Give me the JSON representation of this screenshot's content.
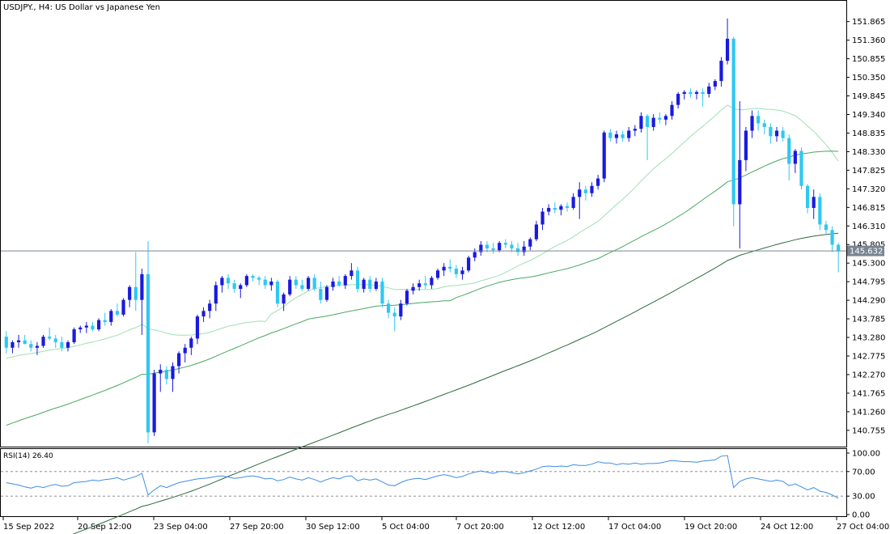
{
  "window": {
    "symbol_title": "USDJPY., H4:  US Dollar vs Japanese Yen",
    "rsi_label": "RSI(14) 26.40",
    "current_price_label": "145.632"
  },
  "price_axis": {
    "labels": [
      "151.865",
      "151.360",
      "150.855",
      "150.350",
      "149.845",
      "149.340",
      "148.835",
      "148.330",
      "147.825",
      "147.320",
      "146.815",
      "146.310",
      "145.805",
      "145.300",
      "144.795",
      "144.290",
      "143.785",
      "143.280",
      "142.775",
      "142.270",
      "141.765",
      "141.260",
      "140.755"
    ]
  },
  "rsi_axis": {
    "labels": [
      "100.00",
      "70.00",
      "30.00",
      "0.00"
    ]
  },
  "time_axis": {
    "labels": [
      "15 Sep 2022",
      "20 Sep 12:00",
      "23 Sep 04:00",
      "27 Sep 20:00",
      "30 Sep 12:00",
      "5 Oct 04:00",
      "7 Oct 20:00",
      "12 Oct 12:00",
      "17 Oct 04:00",
      "19 Oct 20:00",
      "24 Oct 12:00",
      "27 Oct 04:00"
    ]
  },
  "colors": {
    "bull": "#1a1adf",
    "bear": "#2ec8f2",
    "ma_fast": "#9ee0b4",
    "ma_mid": "#4aa860",
    "ma_slow": "#2e6b3c",
    "rsi_line": "#3d8ee8",
    "grid": "#808080",
    "price_tag_bg": "#7a8593"
  },
  "chart_data": {
    "type": "candlestick",
    "symbol": "USDJPY.",
    "timeframe": "H4",
    "title": "US Dollar vs Japanese Yen",
    "ylim": [
      140.4,
      152.1
    ],
    "current_price": 145.632,
    "candles": [
      [
        143.3,
        143.45,
        142.85,
        143.0
      ],
      [
        143.0,
        143.2,
        142.85,
        143.15
      ],
      [
        143.15,
        143.35,
        143.0,
        143.2
      ],
      [
        143.2,
        143.35,
        143.1,
        143.1
      ],
      [
        143.1,
        143.2,
        142.9,
        143.0
      ],
      [
        143.0,
        143.15,
        142.8,
        143.05
      ],
      [
        143.05,
        143.35,
        143.0,
        143.3
      ],
      [
        143.3,
        143.55,
        143.2,
        143.25
      ],
      [
        143.25,
        143.35,
        143.0,
        143.15
      ],
      [
        143.15,
        143.3,
        142.9,
        143.0
      ],
      [
        143.0,
        143.2,
        142.9,
        143.15
      ],
      [
        143.15,
        143.55,
        143.1,
        143.5
      ],
      [
        143.5,
        143.6,
        143.4,
        143.55
      ],
      [
        143.55,
        143.7,
        143.4,
        143.6
      ],
      [
        143.6,
        143.7,
        143.45,
        143.5
      ],
      [
        143.5,
        143.8,
        143.45,
        143.75
      ],
      [
        143.75,
        143.95,
        143.6,
        143.7
      ],
      [
        143.7,
        144.05,
        143.6,
        144.0
      ],
      [
        144.0,
        144.2,
        143.85,
        143.9
      ],
      [
        143.9,
        144.35,
        143.85,
        144.3
      ],
      [
        144.3,
        144.7,
        144.1,
        144.65
      ],
      [
        144.65,
        145.6,
        144.0,
        144.3
      ],
      [
        144.3,
        145.15,
        143.35,
        145.0
      ],
      [
        145.0,
        145.9,
        140.4,
        140.7
      ],
      [
        140.7,
        142.4,
        140.6,
        142.3
      ],
      [
        142.3,
        142.55,
        141.8,
        142.4
      ],
      [
        142.4,
        142.5,
        142.0,
        142.15
      ],
      [
        142.15,
        142.6,
        141.8,
        142.5
      ],
      [
        142.5,
        142.9,
        142.3,
        142.85
      ],
      [
        142.85,
        143.1,
        142.6,
        143.0
      ],
      [
        143.0,
        143.3,
        142.8,
        143.25
      ],
      [
        143.25,
        143.9,
        143.1,
        143.85
      ],
      [
        143.85,
        144.1,
        143.7,
        144.0
      ],
      [
        144.0,
        144.3,
        143.8,
        144.2
      ],
      [
        144.2,
        144.8,
        144.0,
        144.7
      ],
      [
        144.7,
        144.95,
        144.5,
        144.9
      ],
      [
        144.9,
        145.0,
        144.6,
        144.75
      ],
      [
        144.75,
        144.85,
        144.5,
        144.6
      ],
      [
        144.6,
        144.75,
        144.35,
        144.7
      ],
      [
        144.7,
        145.0,
        144.65,
        144.95
      ],
      [
        144.95,
        145.0,
        144.8,
        144.9
      ],
      [
        144.9,
        144.95,
        144.7,
        144.85
      ],
      [
        144.85,
        144.95,
        144.6,
        144.7
      ],
      [
        144.7,
        144.9,
        144.55,
        144.8
      ],
      [
        144.8,
        144.85,
        144.1,
        144.2
      ],
      [
        144.2,
        144.5,
        144.0,
        144.45
      ],
      [
        144.45,
        144.95,
        144.4,
        144.85
      ],
      [
        144.85,
        144.95,
        144.6,
        144.7
      ],
      [
        144.7,
        144.85,
        144.55,
        144.6
      ],
      [
        144.6,
        144.95,
        144.55,
        144.9
      ],
      [
        144.9,
        145.0,
        144.55,
        144.6
      ],
      [
        144.6,
        144.8,
        144.2,
        144.3
      ],
      [
        144.3,
        144.7,
        144.25,
        144.65
      ],
      [
        144.65,
        144.9,
        144.55,
        144.8
      ],
      [
        144.8,
        144.95,
        144.65,
        144.7
      ],
      [
        144.7,
        145.0,
        144.6,
        144.95
      ],
      [
        144.95,
        145.3,
        144.85,
        145.1
      ],
      [
        145.1,
        145.2,
        144.5,
        144.6
      ],
      [
        144.6,
        144.9,
        144.5,
        144.85
      ],
      [
        144.85,
        144.95,
        144.5,
        144.6
      ],
      [
        144.6,
        144.9,
        144.55,
        144.8
      ],
      [
        144.8,
        144.9,
        144.1,
        144.2
      ],
      [
        144.2,
        144.3,
        143.8,
        143.95
      ],
      [
        143.95,
        144.1,
        143.45,
        143.85
      ],
      [
        143.85,
        144.3,
        143.75,
        144.2
      ],
      [
        144.2,
        144.6,
        144.15,
        144.55
      ],
      [
        144.55,
        144.75,
        144.45,
        144.65
      ],
      [
        144.65,
        144.85,
        144.55,
        144.75
      ],
      [
        144.75,
        144.95,
        144.6,
        144.7
      ],
      [
        144.7,
        144.95,
        144.6,
        144.9
      ],
      [
        144.9,
        145.15,
        144.85,
        145.1
      ],
      [
        145.1,
        145.3,
        144.95,
        145.2
      ],
      [
        145.2,
        145.4,
        145.05,
        145.15
      ],
      [
        145.15,
        145.25,
        144.9,
        145.0
      ],
      [
        145.0,
        145.2,
        144.85,
        145.1
      ],
      [
        145.1,
        145.5,
        145.05,
        145.45
      ],
      [
        145.45,
        145.7,
        145.35,
        145.6
      ],
      [
        145.6,
        145.9,
        145.5,
        145.8
      ],
      [
        145.8,
        145.9,
        145.6,
        145.7
      ],
      [
        145.7,
        145.85,
        145.55,
        145.65
      ],
      [
        145.65,
        145.9,
        145.6,
        145.85
      ],
      [
        145.85,
        145.95,
        145.7,
        145.8
      ],
      [
        145.8,
        145.9,
        145.6,
        145.7
      ],
      [
        145.7,
        145.85,
        145.5,
        145.6
      ],
      [
        145.6,
        145.9,
        145.5,
        145.75
      ],
      [
        145.75,
        146.0,
        145.65,
        145.95
      ],
      [
        145.95,
        146.45,
        145.9,
        146.35
      ],
      [
        146.35,
        146.8,
        146.2,
        146.7
      ],
      [
        146.7,
        146.9,
        146.6,
        146.8
      ],
      [
        146.8,
        146.95,
        146.65,
        146.75
      ],
      [
        146.75,
        146.9,
        146.6,
        146.85
      ],
      [
        146.85,
        146.95,
        146.7,
        146.8
      ],
      [
        146.8,
        147.2,
        146.75,
        147.1
      ],
      [
        147.1,
        147.5,
        146.5,
        147.3
      ],
      [
        147.3,
        147.4,
        147.0,
        147.2
      ],
      [
        147.2,
        147.5,
        147.1,
        147.4
      ],
      [
        147.4,
        147.7,
        147.3,
        147.6
      ],
      [
        147.6,
        148.9,
        147.5,
        148.85
      ],
      [
        148.85,
        148.95,
        148.6,
        148.7
      ],
      [
        148.7,
        148.9,
        148.55,
        148.8
      ],
      [
        148.8,
        148.9,
        148.6,
        148.7
      ],
      [
        148.7,
        149.0,
        148.6,
        148.9
      ],
      [
        148.9,
        149.05,
        148.75,
        148.95
      ],
      [
        148.95,
        149.4,
        148.85,
        149.3
      ],
      [
        149.3,
        149.35,
        148.1,
        149.0
      ],
      [
        149.0,
        149.35,
        148.9,
        149.25
      ],
      [
        149.25,
        149.4,
        149.1,
        149.2
      ],
      [
        149.2,
        149.35,
        149.05,
        149.3
      ],
      [
        149.3,
        149.7,
        149.2,
        149.6
      ],
      [
        149.6,
        149.95,
        149.5,
        149.9
      ],
      [
        149.9,
        150.0,
        149.75,
        149.95
      ],
      [
        149.95,
        150.05,
        149.8,
        149.9
      ],
      [
        149.9,
        150.0,
        149.75,
        149.95
      ],
      [
        149.95,
        150.05,
        149.55,
        149.9
      ],
      [
        149.9,
        150.2,
        149.8,
        150.1
      ],
      [
        150.1,
        150.3,
        150.0,
        150.25
      ],
      [
        150.25,
        150.9,
        150.1,
        150.8
      ],
      [
        150.8,
        151.95,
        150.7,
        151.4
      ],
      [
        151.4,
        151.45,
        146.3,
        146.9
      ],
      [
        146.9,
        149.7,
        145.7,
        148.1
      ],
      [
        148.1,
        149.0,
        147.8,
        148.9
      ],
      [
        148.9,
        149.45,
        148.7,
        149.3
      ],
      [
        149.3,
        149.45,
        148.9,
        149.1
      ],
      [
        149.1,
        149.2,
        148.8,
        149.0
      ],
      [
        149.0,
        149.1,
        148.55,
        148.75
      ],
      [
        148.75,
        149.0,
        148.6,
        148.9
      ],
      [
        148.9,
        149.0,
        148.6,
        148.7
      ],
      [
        148.7,
        148.8,
        147.55,
        148.0
      ],
      [
        148.0,
        148.4,
        147.75,
        148.35
      ],
      [
        148.35,
        148.45,
        147.3,
        147.4
      ],
      [
        147.4,
        147.45,
        146.65,
        146.8
      ],
      [
        146.8,
        147.3,
        146.5,
        147.1
      ],
      [
        147.1,
        147.2,
        146.2,
        146.35
      ],
      [
        146.35,
        146.45,
        146.1,
        146.2
      ],
      [
        146.2,
        146.3,
        145.6,
        145.8
      ],
      [
        145.8,
        145.85,
        145.05,
        145.632
      ]
    ],
    "rsi": {
      "name": "RSI(14)",
      "last_value": 26.4,
      "levels": [
        70,
        30
      ],
      "ylim": [
        0,
        100
      ],
      "values": [
        52,
        50,
        48,
        45,
        43,
        46,
        44,
        47,
        49,
        46,
        47,
        52,
        53,
        54,
        56,
        55,
        57,
        58,
        60,
        56,
        59,
        62,
        67,
        32,
        40,
        47,
        44,
        48,
        52,
        54,
        56,
        58,
        59,
        60,
        62,
        63,
        61,
        59,
        60,
        62,
        63,
        61,
        58,
        59,
        55,
        57,
        61,
        58,
        56,
        60,
        57,
        53,
        57,
        60,
        58,
        62,
        63,
        55,
        58,
        56,
        58,
        53,
        48,
        47,
        52,
        56,
        58,
        59,
        57,
        60,
        63,
        65,
        63,
        60,
        62,
        66,
        69,
        71,
        69,
        67,
        70,
        70,
        68,
        66,
        68,
        71,
        74,
        78,
        79,
        78,
        79,
        78,
        81,
        80,
        80,
        82,
        86,
        84,
        84,
        81,
        83,
        82,
        84,
        82,
        83,
        83,
        84,
        86,
        88,
        87,
        86,
        86,
        85,
        87,
        88,
        89,
        95,
        96,
        44,
        54,
        58,
        60,
        58,
        56,
        54,
        56,
        54,
        47,
        50,
        45,
        40,
        44,
        38,
        36,
        32,
        26.4
      ]
    }
  }
}
